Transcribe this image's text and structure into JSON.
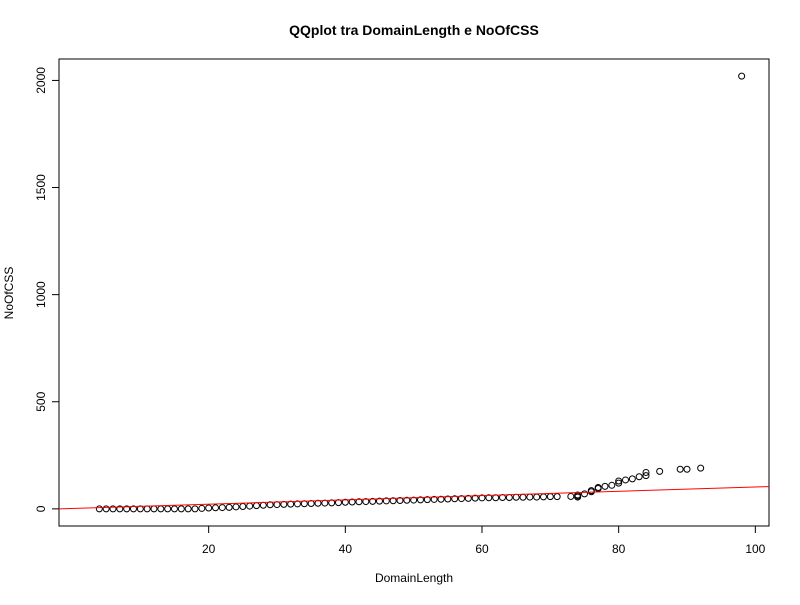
{
  "chart_data": {
    "type": "scatter",
    "title": "QQplot tra DomainLength e NoOfCSS",
    "xlabel": "DomainLength",
    "ylabel": "NoOfCSS",
    "xlim": [
      -1.9,
      102.0
    ],
    "ylim": [
      -80,
      2100
    ],
    "x_ticks": [
      20,
      40,
      60,
      80,
      100
    ],
    "y_ticks": [
      0,
      500,
      1000,
      1500,
      2000
    ],
    "x_tick_labels": [
      "20",
      "40",
      "60",
      "80",
      "100"
    ],
    "y_tick_labels": [
      "0",
      "500",
      "1000",
      "1500",
      "2000"
    ],
    "grid": false,
    "legend": "none",
    "point_color": "#000000",
    "line_color": "#ff0000",
    "reference_line": {
      "x": [
        -1.9,
        102.0
      ],
      "y": [
        0,
        104
      ]
    },
    "points": [
      [
        4,
        0
      ],
      [
        5,
        0
      ],
      [
        6,
        0
      ],
      [
        7,
        0
      ],
      [
        8,
        0
      ],
      [
        9,
        0
      ],
      [
        10,
        0
      ],
      [
        11,
        0
      ],
      [
        12,
        0
      ],
      [
        13,
        0
      ],
      [
        14,
        0
      ],
      [
        15,
        0
      ],
      [
        16,
        0
      ],
      [
        17,
        0
      ],
      [
        18,
        0
      ],
      [
        19,
        2
      ],
      [
        20,
        4
      ],
      [
        21,
        5
      ],
      [
        22,
        6
      ],
      [
        23,
        7
      ],
      [
        24,
        9
      ],
      [
        25,
        11
      ],
      [
        26,
        13
      ],
      [
        27,
        15
      ],
      [
        28,
        17
      ],
      [
        29,
        19
      ],
      [
        30,
        20
      ],
      [
        31,
        21
      ],
      [
        32,
        22
      ],
      [
        33,
        23
      ],
      [
        34,
        24
      ],
      [
        35,
        25
      ],
      [
        36,
        26
      ],
      [
        37,
        27
      ],
      [
        38,
        28
      ],
      [
        39,
        29
      ],
      [
        40,
        31
      ],
      [
        41,
        32
      ],
      [
        42,
        33
      ],
      [
        43,
        34
      ],
      [
        44,
        35
      ],
      [
        45,
        36
      ],
      [
        46,
        37
      ],
      [
        47,
        38
      ],
      [
        48,
        39
      ],
      [
        49,
        40
      ],
      [
        50,
        41
      ],
      [
        51,
        42
      ],
      [
        52,
        43
      ],
      [
        53,
        44
      ],
      [
        54,
        45
      ],
      [
        55,
        46
      ],
      [
        56,
        47
      ],
      [
        57,
        48
      ],
      [
        58,
        49
      ],
      [
        59,
        50
      ],
      [
        60,
        51
      ],
      [
        61,
        52
      ],
      [
        62,
        52
      ],
      [
        63,
        53
      ],
      [
        64,
        53
      ],
      [
        65,
        54
      ],
      [
        66,
        54
      ],
      [
        67,
        55
      ],
      [
        68,
        55
      ],
      [
        69,
        56
      ],
      [
        70,
        57
      ],
      [
        71,
        57
      ],
      [
        73,
        58
      ],
      [
        74,
        55
      ],
      [
        74,
        60
      ],
      [
        74,
        65
      ],
      [
        75,
        70
      ],
      [
        76,
        80
      ],
      [
        76,
        85
      ],
      [
        77,
        95
      ],
      [
        77,
        100
      ],
      [
        78,
        105
      ],
      [
        79,
        110
      ],
      [
        80,
        120
      ],
      [
        80,
        130
      ],
      [
        81,
        135
      ],
      [
        82,
        140
      ],
      [
        83,
        150
      ],
      [
        84,
        155
      ],
      [
        84,
        170
      ],
      [
        86,
        175
      ],
      [
        89,
        185
      ],
      [
        90,
        185
      ],
      [
        92,
        190
      ],
      [
        98,
        2020
      ]
    ]
  }
}
